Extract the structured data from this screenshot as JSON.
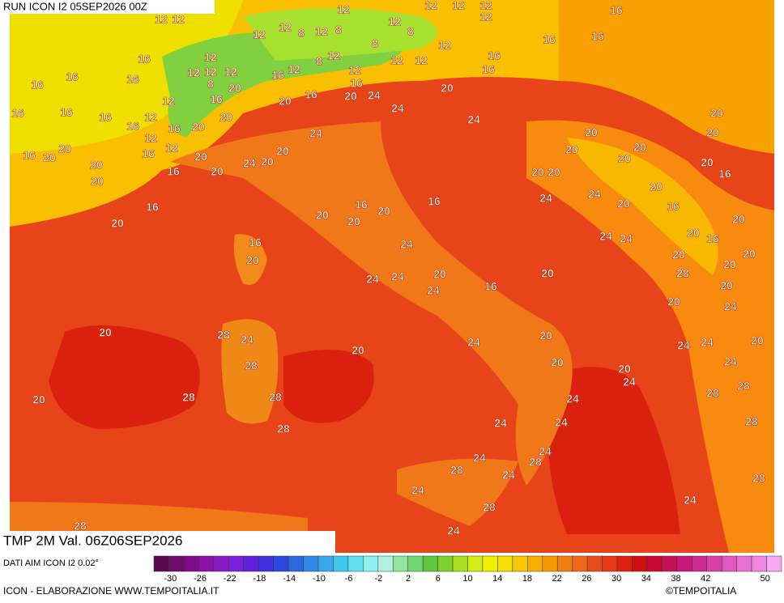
{
  "header": {
    "run": "RUN ICON I2 05SEP2026 00Z",
    "title": "TMP 2M Val. 06Z06SEP2026",
    "source": "DATI AIM ICON I2 0.02°",
    "credit": "ICON - ELABORAZIONE WWW.TEMPOITALIA.IT",
    "copyright": "©TEMPOITALIA"
  },
  "colorbar": {
    "ticks": [
      -30,
      -26,
      -22,
      -18,
      -14,
      -10,
      -6,
      -2,
      2,
      6,
      10,
      14,
      18,
      22,
      26,
      30,
      34,
      38,
      42,
      50
    ],
    "colors": [
      "#5a0a4a",
      "#6e0a6a",
      "#800a88",
      "#8a10a8",
      "#8a1ac4",
      "#7a20d8",
      "#6020e0",
      "#4030e0",
      "#2a48e0",
      "#2a68e0",
      "#3088e8",
      "#38a8ee",
      "#40c8f0",
      "#60e0f0",
      "#90f0f0",
      "#b0f0e0",
      "#90e8a0",
      "#70d870",
      "#60c840",
      "#80d030",
      "#a8e020",
      "#d0f010",
      "#f0f000",
      "#f8e000",
      "#f8c800",
      "#f8b000",
      "#f89800",
      "#f08010",
      "#f06818",
      "#e84c18",
      "#e83818",
      "#e02010",
      "#d01010",
      "#c80830",
      "#c81058",
      "#c81878",
      "#d02890",
      "#d840a8",
      "#e058c0",
      "#e870d0",
      "#f088e0",
      "#f8a8f0"
    ]
  },
  "map_labels": [
    12,
    12,
    12,
    12,
    12,
    16,
    12,
    12,
    12,
    12,
    8,
    12,
    8,
    12,
    8,
    12,
    8,
    16,
    16,
    16,
    12,
    12,
    8,
    12,
    12,
    16,
    16,
    16,
    16,
    16,
    12,
    12,
    12,
    8,
    16,
    12,
    12,
    16,
    20,
    16,
    20,
    24,
    20,
    12,
    16,
    20,
    16,
    16,
    16,
    12,
    20,
    24,
    24,
    20,
    16,
    16,
    20,
    12,
    20,
    20,
    24,
    20,
    20,
    16,
    12,
    16,
    20,
    20,
    20,
    20,
    24,
    20,
    20,
    20,
    20,
    16,
    20,
    20,
    20,
    16,
    20,
    20,
    16,
    24,
    24,
    16,
    20,
    20,
    16,
    16,
    20,
    20,
    20,
    20,
    24,
    24,
    20,
    16,
    16,
    24,
    20,
    20,
    20,
    20,
    20,
    28,
    24,
    24,
    20,
    20,
    16,
    24,
    20,
    24,
    20,
    28,
    24,
    20,
    24,
    24,
    24,
    20,
    20,
    28,
    20,
    24,
    20,
    24,
    28,
    20,
    28,
    28,
    24,
    28,
    24,
    24,
    28,
    28,
    24,
    24,
    28,
    28,
    24,
    28,
    24,
    24,
    28,
    24,
    28,
    24
  ]
}
